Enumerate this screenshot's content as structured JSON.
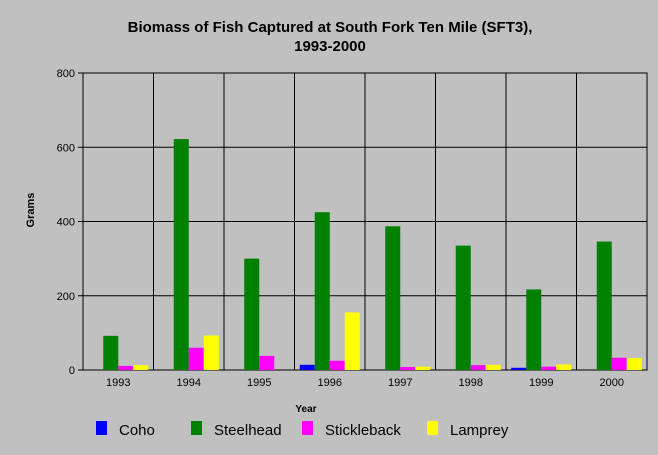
{
  "chart_data": {
    "type": "bar",
    "title": "Biomass of Fish Captured at South Fork Ten Mile (SFT3),",
    "subtitle": "1993-2000",
    "xlabel": "Year",
    "ylabel": "Grams",
    "ylim": [
      0,
      800
    ],
    "yticks": [
      "0",
      "200",
      "400",
      "600",
      "800"
    ],
    "grid": true,
    "legend_position": "bottom",
    "categories": [
      "1993",
      "1994",
      "1995",
      "1996",
      "1997",
      "1998",
      "1999",
      "2000"
    ],
    "series": [
      {
        "name": "Coho",
        "color": "#0000ff",
        "values": [
          0,
          0,
          0,
          14,
          0,
          0,
          6,
          0
        ]
      },
      {
        "name": "Steelhead",
        "color": "#008000",
        "values": [
          92,
          622,
          300,
          425,
          387,
          335,
          217,
          346
        ]
      },
      {
        "name": "Stickleback",
        "color": "#ff00ff",
        "values": [
          11,
          60,
          38,
          25,
          8,
          13,
          9,
          33
        ]
      },
      {
        "name": "Lamprey",
        "color": "#ffff00",
        "values": [
          13,
          93,
          0,
          155,
          9,
          14,
          15,
          32
        ]
      }
    ]
  }
}
